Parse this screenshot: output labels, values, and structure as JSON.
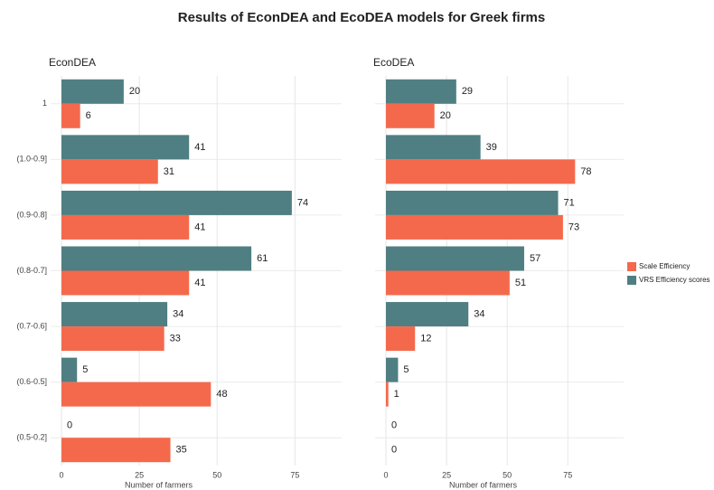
{
  "chart_data": {
    "type": "bar",
    "orientation": "horizontal",
    "title": "Results of EconDEA and EcoDEA models for Greek firms",
    "categories": [
      "1",
      "(1.0-0.9]",
      "(0.9-0.8]",
      "(0.8-0.7]",
      "(0.7-0.6]",
      "(0.6-0.5]",
      "(0.5-0.2]"
    ],
    "panels": [
      {
        "title": "EconDEA",
        "xlabel": "Number of farmers",
        "xlim": [
          0,
          90
        ],
        "xticks": [
          0,
          25,
          50,
          75
        ]
      },
      {
        "title": "EcoDEA",
        "xlabel": "Number of farmers",
        "xlim": [
          0,
          98
        ],
        "xticks": [
          0,
          25,
          50,
          75
        ]
      }
    ],
    "series": [
      {
        "name": "Scale Efficiency",
        "color": "#f4694c",
        "values": [
          [
            6,
            31,
            41,
            41,
            33,
            48,
            35
          ],
          [
            20,
            78,
            73,
            51,
            12,
            1,
            0
          ]
        ]
      },
      {
        "name": "VRS Efficiency scores",
        "color": "#4f7f82",
        "values": [
          [
            20,
            41,
            74,
            61,
            34,
            5,
            0
          ],
          [
            29,
            39,
            71,
            57,
            34,
            5,
            0
          ]
        ]
      }
    ],
    "legend": "right",
    "grid": true
  }
}
